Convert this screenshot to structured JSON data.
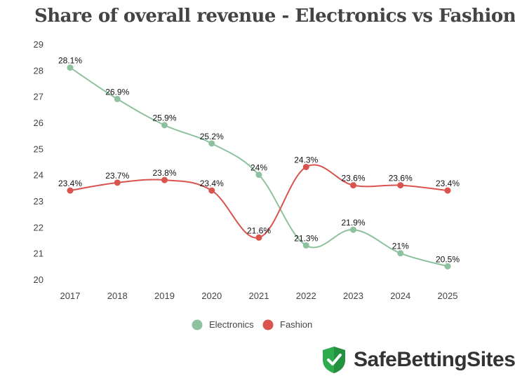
{
  "chart_data": {
    "type": "line",
    "title": "Share of overall revenue - Electronics vs Fashion",
    "xlabel": "",
    "ylabel": "",
    "categories": [
      "2017",
      "2018",
      "2019",
      "2020",
      "2021",
      "2022",
      "2023",
      "2024",
      "2025"
    ],
    "ylim": [
      20,
      29
    ],
    "yticks": [
      "20",
      "21",
      "22",
      "23",
      "24",
      "25",
      "26",
      "27",
      "28",
      "29"
    ],
    "grid": false,
    "legend": "bottom-center",
    "series": [
      {
        "name": "Electronics",
        "color": "#8ec29f",
        "values": [
          28.1,
          26.9,
          25.9,
          25.2,
          24,
          21.3,
          21.9,
          21,
          20.5
        ],
        "labels": [
          "28.1%",
          "26.9%",
          "25.9%",
          "25.2%",
          "24%",
          "21.3%",
          "21.9%",
          "21%",
          "20.5%"
        ]
      },
      {
        "name": "Fashion",
        "color": "#d9534f",
        "values": [
          23.4,
          23.7,
          23.8,
          23.4,
          21.6,
          24.3,
          23.6,
          23.6,
          23.4
        ],
        "labels": [
          "23.4%",
          "23.7%",
          "23.8%",
          "23.4%",
          "21.6%",
          "24.3%",
          "23.6%",
          "23.6%",
          "23.4%"
        ]
      }
    ]
  },
  "brand": {
    "name": "SafeBettingSites",
    "logo_icon": "shield-check-icon",
    "color": "#2eaa4f"
  }
}
